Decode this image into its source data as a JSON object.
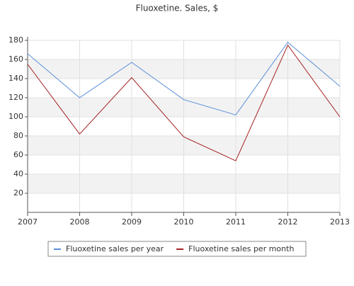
{
  "chart_data": {
    "type": "line",
    "title": "Fluoxetine. Sales, $",
    "x": [
      2007,
      2008,
      2009,
      2010,
      2011,
      2012,
      2013
    ],
    "series": [
      {
        "name": "Fluoxetine sales per year",
        "color": "#5b8fd9",
        "values": [
          166,
          120,
          157,
          118,
          102,
          178,
          132
        ]
      },
      {
        "name": "Fluoxetine sales per month",
        "color": "#a52222",
        "values": [
          155,
          82,
          141,
          79,
          54,
          175,
          100
        ]
      }
    ],
    "xlim": [
      2007,
      2013
    ],
    "xticks": [
      2007,
      2008,
      2009,
      2010,
      2011,
      2012,
      2013
    ],
    "ylim": [
      0,
      180
    ],
    "yticks": [
      20,
      40,
      60,
      80,
      100,
      120,
      140,
      160,
      180
    ],
    "grid": true,
    "legend": "bottom"
  }
}
